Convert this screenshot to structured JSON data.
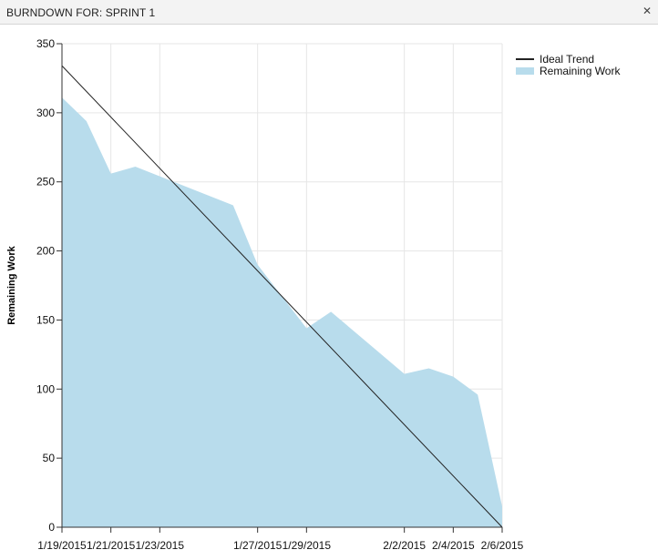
{
  "window": {
    "title": "BURNDOWN FOR: SPRINT 1",
    "close_icon": "close-icon"
  },
  "colors": {
    "area_fill": "#b8dcec",
    "trend_line": "#222222",
    "grid": "#e6e6e6",
    "axis": "#333333"
  },
  "chart_data": {
    "type": "area",
    "title": "",
    "xlabel": "",
    "ylabel": "Remaining Work",
    "ylim": [
      0,
      350
    ],
    "yticks": [
      0,
      50,
      100,
      150,
      200,
      250,
      300,
      350
    ],
    "xticks": [
      "1/19/2015",
      "1/21/2015",
      "1/23/2015",
      "1/27/2015",
      "1/29/2015",
      "2/2/2015",
      "2/4/2015",
      "2/6/2015"
    ],
    "legend_position": "top-right",
    "grid": true,
    "series": [
      {
        "name": "Ideal Trend",
        "kind": "line",
        "points": [
          {
            "x": "1/19/2015",
            "y": 334
          },
          {
            "x": "2/6/2015",
            "y": 0
          }
        ]
      },
      {
        "name": "Remaining Work",
        "kind": "area",
        "points": [
          {
            "x": "1/19/2015",
            "y": 311
          },
          {
            "x": "1/20/2015",
            "y": 294
          },
          {
            "x": "1/21/2015",
            "y": 256
          },
          {
            "x": "1/22/2015",
            "y": 261
          },
          {
            "x": "1/23/2015",
            "y": 254
          },
          {
            "x": "1/26/2015",
            "y": 233
          },
          {
            "x": "1/27/2015",
            "y": 190
          },
          {
            "x": "1/28/2015",
            "y": 167
          },
          {
            "x": "1/29/2015",
            "y": 144
          },
          {
            "x": "1/30/2015",
            "y": 156
          },
          {
            "x": "2/2/2015",
            "y": 111
          },
          {
            "x": "2/3/2015",
            "y": 115
          },
          {
            "x": "2/4/2015",
            "y": 109
          },
          {
            "x": "2/5/2015",
            "y": 96
          },
          {
            "x": "2/6/2015",
            "y": 15
          }
        ]
      }
    ]
  }
}
